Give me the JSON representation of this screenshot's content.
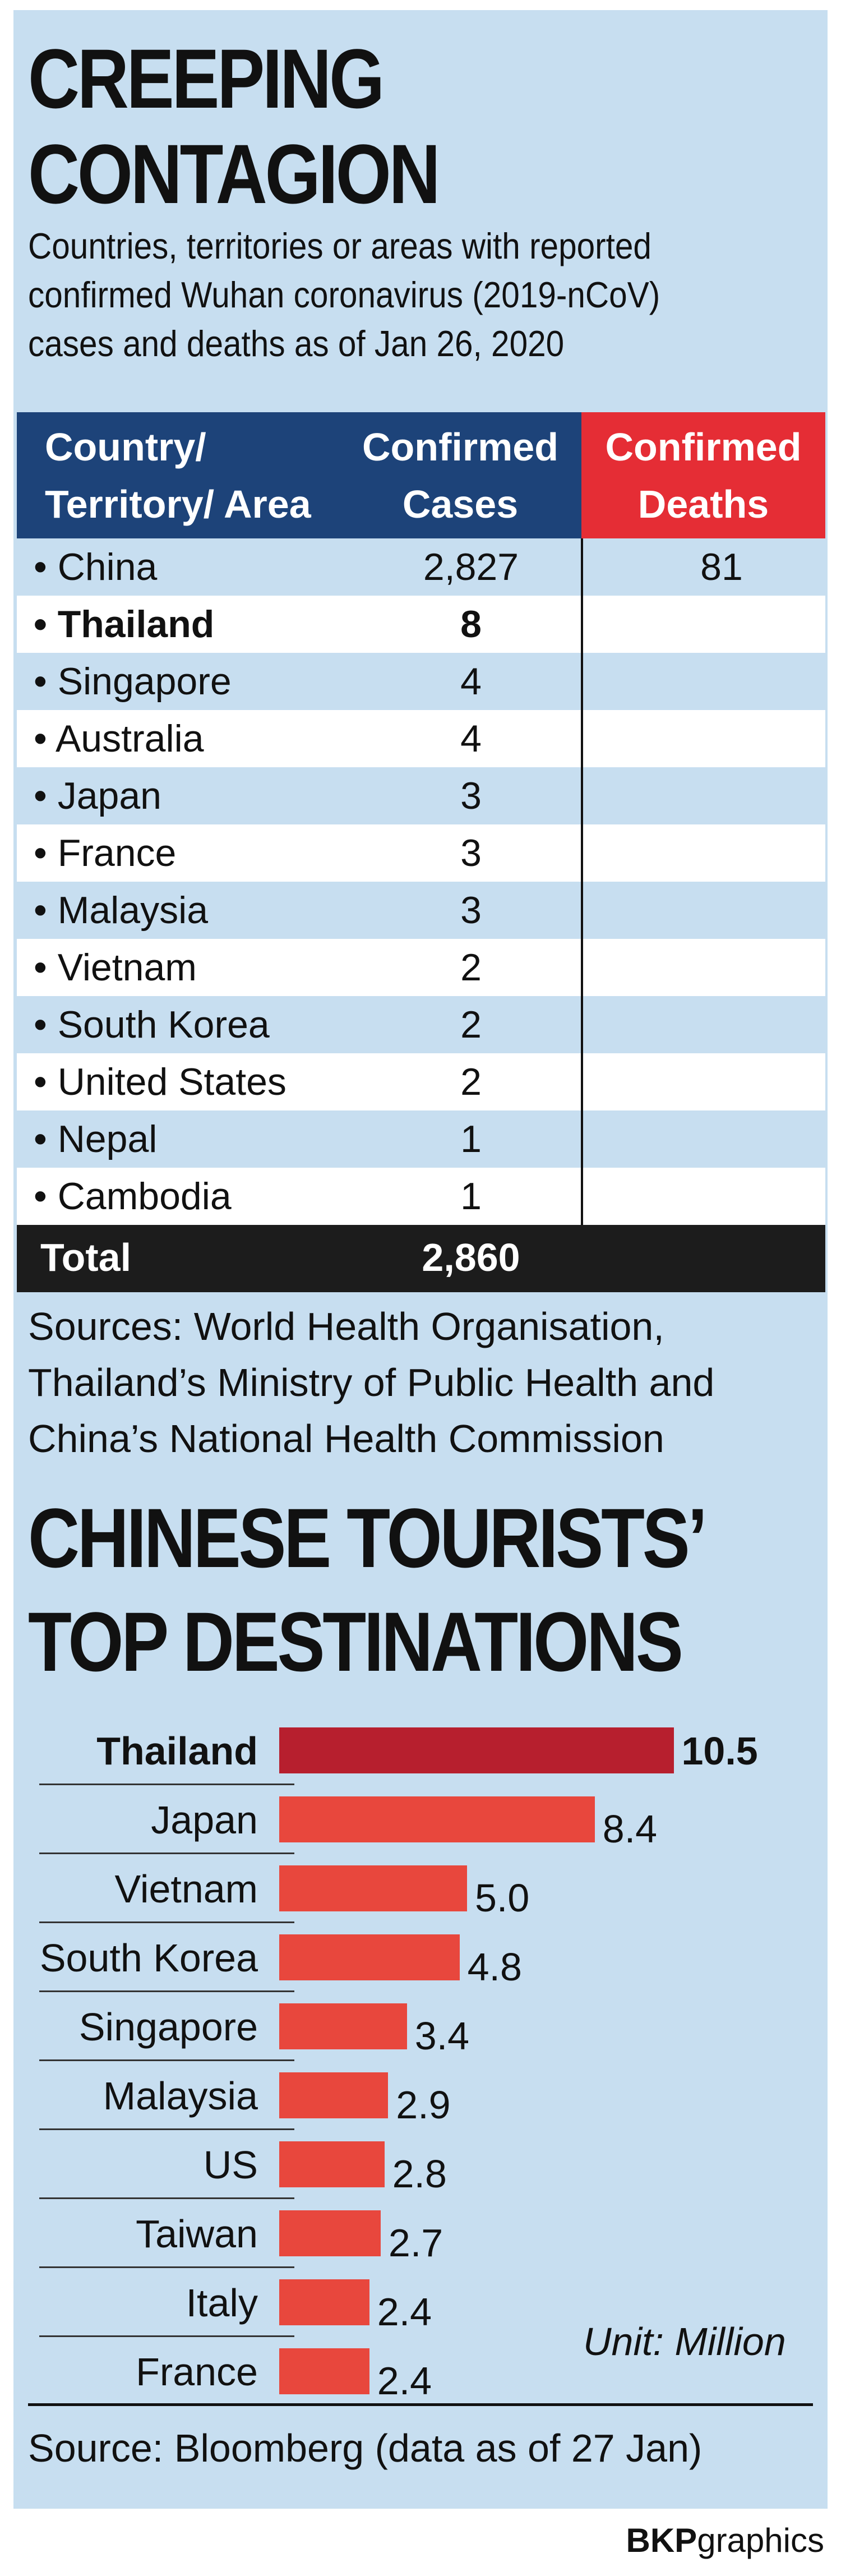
{
  "section1": {
    "title_line1": "CREEPING",
    "title_line2": "CONTAGION",
    "subtitle": "Countries, territories or areas with reported confirmed Wuhan coronavirus (2019-nCoV) cases and deaths as of Jan 26, 2020",
    "headers": {
      "country": [
        "Country/",
        "Territory/ Area"
      ],
      "cases": [
        "Confirmed",
        "Cases"
      ],
      "deaths": [
        "Confirmed",
        "Deaths"
      ]
    },
    "rows": [
      {
        "country": "• China",
        "cases": "2,827",
        "deaths": "81"
      },
      {
        "country": "• Thailand",
        "cases": "8",
        "deaths": ""
      },
      {
        "country": "• Singapore",
        "cases": "4",
        "deaths": ""
      },
      {
        "country": "• Australia",
        "cases": "4",
        "deaths": ""
      },
      {
        "country": "• Japan",
        "cases": "3",
        "deaths": ""
      },
      {
        "country": "• France",
        "cases": "3",
        "deaths": ""
      },
      {
        "country": "• Malaysia",
        "cases": "3",
        "deaths": ""
      },
      {
        "country": "• Vietnam",
        "cases": "2",
        "deaths": ""
      },
      {
        "country": "• South Korea",
        "cases": "2",
        "deaths": ""
      },
      {
        "country": "• United States",
        "cases": "2",
        "deaths": ""
      },
      {
        "country": "• Nepal",
        "cases": "1",
        "deaths": ""
      },
      {
        "country": "• Cambodia",
        "cases": "1",
        "deaths": ""
      }
    ],
    "total_label": "Total",
    "total_value": "2,860",
    "sources": "Sources: World Health Organisation, Thailand’s Ministry of Public Health and China’s National Health Commission"
  },
  "section2": {
    "title_line1": "CHINESE TOURISTS’",
    "title_line2": "TOP DESTINATIONS",
    "unit": "Unit: Million",
    "source": "Source: Bloomberg (data as of 27 Jan)"
  },
  "credit_bold": "BKP",
  "credit_rest": "graphics",
  "colors": {
    "panel": "#c7def0",
    "header_blue": "#1d4379",
    "header_red": "#e52d35",
    "bar": "#e8473d",
    "bar_highlight": "#b71f2e"
  },
  "chart_data": {
    "type": "bar",
    "orientation": "horizontal",
    "title": "CHINESE TOURISTS’ TOP DESTINATIONS",
    "categories": [
      "Thailand",
      "Japan",
      "Vietnam",
      "South Korea",
      "Singapore",
      "Malaysia",
      "US",
      "Taiwan",
      "Italy",
      "France"
    ],
    "values": [
      10.5,
      8.4,
      5.0,
      4.8,
      3.4,
      2.9,
      2.8,
      2.7,
      2.4,
      2.4
    ],
    "value_labels": [
      "10.5",
      "8.4",
      "5.0",
      "4.8",
      "3.4",
      "2.9",
      "2.8",
      "2.7",
      "2.4",
      "2.4"
    ],
    "highlight": "Thailand",
    "xlabel": "",
    "ylabel": "",
    "grid": false
  }
}
